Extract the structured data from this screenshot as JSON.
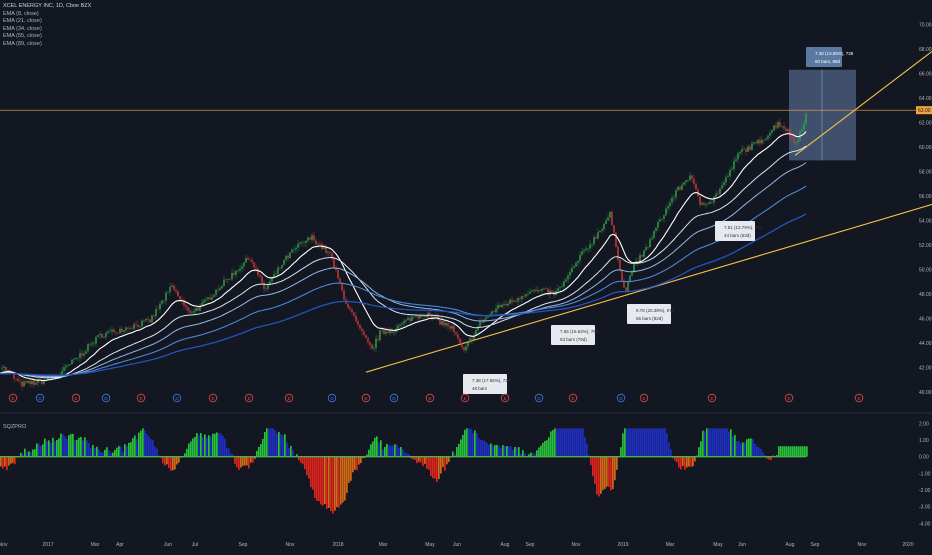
{
  "chart_data": [
    {
      "type": "candlestick",
      "title": "XCEL ENERGY INC, 1D, Cboe BZX",
      "indicators": [
        "EMA (8, close)",
        "EMA (21, close)",
        "EMA (34, close)",
        "EMA (55, close)",
        "EMA (89, close)"
      ],
      "ylim": [
        39,
        72
      ],
      "y_ticks": [
        "40.00",
        "42.00",
        "44.00",
        "46.00",
        "48.00",
        "50.00",
        "52.00",
        "54.00",
        "56.00",
        "58.00",
        "60.00",
        "62.00",
        "64.00",
        "66.00",
        "68.00",
        "70.00"
      ],
      "x_ticks": [
        "Nov",
        "2017",
        "Mar",
        "Apr",
        "Jun",
        "Jul",
        "Sep",
        "Nov",
        "2018",
        "Mar",
        "May",
        "Jun",
        "Aug",
        "Sep",
        "Nov",
        "2019",
        "Mar",
        "May",
        "Jun",
        "Aug",
        "Sep",
        "Nov",
        "2020"
      ],
      "current_price": "63.00",
      "price_path": [
        [
          0,
          42.2
        ],
        [
          10,
          41.5
        ],
        [
          20,
          40.6
        ],
        [
          40,
          40.8
        ],
        [
          60,
          41.5
        ],
        [
          80,
          43.0
        ],
        [
          100,
          44.6
        ],
        [
          125,
          45.2
        ],
        [
          150,
          45.8
        ],
        [
          172,
          48.6
        ],
        [
          188,
          46.5
        ],
        [
          200,
          46.9
        ],
        [
          215,
          48.2
        ],
        [
          235,
          49.8
        ],
        [
          250,
          51.0
        ],
        [
          265,
          48.3
        ],
        [
          285,
          50.8
        ],
        [
          298,
          51.9
        ],
        [
          312,
          52.6
        ],
        [
          330,
          51.2
        ],
        [
          345,
          47.5
        ],
        [
          360,
          45.0
        ],
        [
          372,
          43.4
        ],
        [
          380,
          44.8
        ],
        [
          395,
          45.1
        ],
        [
          410,
          46.0
        ],
        [
          425,
          46.4
        ],
        [
          438,
          45.8
        ],
        [
          452,
          45.2
        ],
        [
          464,
          43.2
        ],
        [
          470,
          44.2
        ],
        [
          482,
          45.8
        ],
        [
          500,
          47.0
        ],
        [
          515,
          47.5
        ],
        [
          528,
          48.2
        ],
        [
          545,
          48.2
        ],
        [
          555,
          48.0
        ],
        [
          565,
          49.0
        ],
        [
          580,
          51.0
        ],
        [
          595,
          52.6
        ],
        [
          610,
          54.5
        ],
        [
          618,
          51.0
        ],
        [
          625,
          48.0
        ],
        [
          632,
          50.0
        ],
        [
          645,
          51.5
        ],
        [
          660,
          54.0
        ],
        [
          675,
          56.2
        ],
        [
          690,
          57.7
        ],
        [
          700,
          55.4
        ],
        [
          712,
          55.6
        ],
        [
          725,
          57.2
        ],
        [
          740,
          59.6
        ],
        [
          755,
          60.2
        ],
        [
          768,
          61.0
        ],
        [
          778,
          62.0
        ],
        [
          787,
          61.4
        ],
        [
          795,
          60.2
        ],
        [
          800,
          61.2
        ],
        [
          806,
          62.6
        ]
      ],
      "trendlines": [
        {
          "from": [
            "2018-03",
            41.6
          ],
          "to": [
            "2020-01",
            55.0
          ]
        },
        {
          "from": [
            "2018-05",
            42.0
          ],
          "to": [
            "2020-01",
            66.4
          ]
        }
      ],
      "annotations": [
        {
          "line1": "7.38 (17.55%), 738",
          "line2": "48 bars"
        },
        {
          "line1": "7.65 (16.63%), 765",
          "line2": "53 bars (79d)"
        },
        {
          "line1": "9.78 (20.38%), 978",
          "line2": "56 bars (82d)"
        },
        {
          "line1": "7.51 (13.79%), 751",
          "line2": "44 bars (63d)"
        },
        {
          "line1": "7.38 (13.55%), 738",
          "line2": "60 bars, 89d"
        }
      ],
      "event_markers": [
        "E",
        "D",
        "E",
        "D",
        "E",
        "D",
        "E",
        "E",
        "E",
        "D",
        "E",
        "D",
        "E",
        "E",
        "E",
        "D",
        "E",
        "D",
        "E",
        "E",
        "E",
        "E"
      ]
    },
    {
      "type": "bar",
      "title": "SQZPRO",
      "ylim": [
        -4.4,
        2.2
      ],
      "y_ticks": [
        "2.00",
        "1.00",
        "0.00",
        "-1.00",
        "-2.00",
        "-3.00",
        "-4.00"
      ],
      "colors": {
        "up_strong": "#26c33a",
        "up_weak": "#1f2fc0",
        "down_strong": "#e0241c",
        "down_weak": "#d56a14"
      }
    }
  ],
  "colors": {
    "background": "#131722",
    "candle_up": "#2fa84f",
    "candle_down": "#d83a36",
    "ema8": "#ffffff",
    "ema21": "#d7e6f2",
    "ema34": "#8fb8e6",
    "ema55": "#4d86d4",
    "ema89": "#2454b8",
    "trendline": "#f5c448",
    "price_line": "#f5a340",
    "price_label": "#f5a340",
    "marker_earnings": "#e04a46",
    "marker_dividend": "#3b79e8",
    "measure_box": "rgba(120,150,200,0.45)",
    "measure_label": "#5a7aa3"
  }
}
